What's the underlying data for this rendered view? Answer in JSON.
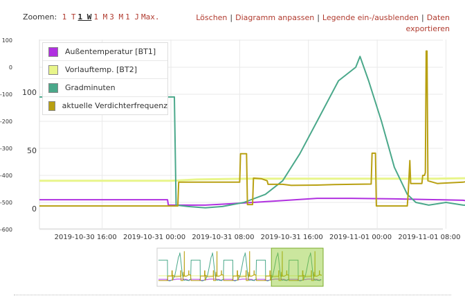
{
  "zoom": {
    "label": "Zoomen:",
    "options": [
      "1 T",
      "1 W",
      "1 M",
      "3 M",
      "1 J",
      "Max."
    ],
    "active": "1 W"
  },
  "actions": {
    "delete": "Löschen",
    "adjust": "Diagramm anpassen",
    "legend_toggle": "Legende ein-/ausblenden",
    "export": "Daten exportieren",
    "separator": "|"
  },
  "legend": [
    {
      "name": "Außentemperatur [BT1]",
      "color": "#b030e0"
    },
    {
      "name": "Vorlauftemp. [BT2]",
      "color": "#e8f58a"
    },
    {
      "name": "Gradminuten",
      "color": "#4aa88a"
    },
    {
      "name": "aktuelle Verdichterfrequenz",
      "color": "#b8a012"
    }
  ],
  "chart_data": {
    "type": "line",
    "x_tick_labels": [
      "2019-10-30 16:00",
      "2019-10-31 00:00",
      "2019-10-31 08:00",
      "2019-10-31 16:00",
      "2019-11-01 00:00",
      "2019-11-01 08:00"
    ],
    "left_axis_ticks": [
      "100",
      "0",
      "-100",
      "-200",
      "-300",
      "-400",
      "-500",
      "-600"
    ],
    "right_axis_ticks": [
      "100",
      "50",
      "0"
    ],
    "x_range_hours": [
      8.7,
      65.6
    ],
    "ylim_left": [
      -600,
      100
    ],
    "series": [
      {
        "name": "Außentemperatur [BT1]",
        "color": "#b030e0",
        "points": [
          [
            8.7,
            -490
          ],
          [
            23.6,
            -490
          ],
          [
            23.7,
            -510
          ],
          [
            28,
            -510
          ],
          [
            31,
            -505
          ],
          [
            36,
            -495
          ],
          [
            41,
            -485
          ],
          [
            45,
            -485
          ],
          [
            50,
            -487
          ],
          [
            55,
            -490
          ],
          [
            58,
            -492
          ],
          [
            61,
            -510
          ],
          [
            64.8,
            -500
          ]
        ]
      },
      {
        "name": "Vorlauftemp. [BT2]",
        "color": "#e8f58a",
        "points": [
          [
            8.7,
            -420
          ],
          [
            24,
            -420
          ],
          [
            27,
            -415
          ],
          [
            33,
            -412
          ],
          [
            41,
            -412
          ],
          [
            50,
            -412
          ],
          [
            55,
            -412
          ],
          [
            60,
            -410
          ],
          [
            64,
            -408
          ],
          [
            64.8,
            -410
          ]
        ]
      },
      {
        "name": "Gradminuten",
        "color": "#4aa88a",
        "points": [
          [
            8.7,
            -110
          ],
          [
            8.9,
            -110
          ],
          [
            24.4,
            -110
          ],
          [
            24.6,
            -510
          ],
          [
            26,
            -515
          ],
          [
            28,
            -520
          ],
          [
            30,
            -515
          ],
          [
            32.5,
            -500
          ],
          [
            35,
            -470
          ],
          [
            37,
            -420
          ],
          [
            39,
            -320
          ],
          [
            41,
            -200
          ],
          [
            43.5,
            -50
          ],
          [
            45.5,
            0
          ],
          [
            46,
            40
          ],
          [
            47,
            -50
          ],
          [
            48.5,
            -200
          ],
          [
            50,
            -370
          ],
          [
            51.5,
            -470
          ],
          [
            52.5,
            -500
          ],
          [
            54,
            -510
          ],
          [
            56,
            -500
          ],
          [
            58,
            -510
          ],
          [
            62,
            -515
          ],
          [
            62.5,
            -495
          ],
          [
            64.8,
            -495
          ]
        ]
      },
      {
        "name": "aktuelle Verdichterfrequenz",
        "color": "#b8a012",
        "points": [
          [
            8.7,
            -513
          ],
          [
            24.8,
            -513
          ],
          [
            24.9,
            -425
          ],
          [
            32.0,
            -425
          ],
          [
            32.1,
            -320
          ],
          [
            32.8,
            -320
          ],
          [
            32.9,
            -508
          ],
          [
            33.5,
            -508
          ],
          [
            33.6,
            -410
          ],
          [
            34.5,
            -412
          ],
          [
            35.2,
            -420
          ],
          [
            35.3,
            -433
          ],
          [
            37,
            -433
          ],
          [
            38,
            -437
          ],
          [
            41,
            -436
          ],
          [
            43,
            -434
          ],
          [
            47.3,
            -432
          ],
          [
            47.4,
            -318
          ],
          [
            47.8,
            -318
          ],
          [
            47.9,
            -513
          ],
          [
            51.5,
            -513
          ],
          [
            51.6,
            -470
          ],
          [
            51.8,
            -345
          ],
          [
            51.9,
            -430
          ],
          [
            53.2,
            -430
          ],
          [
            53.3,
            -400
          ],
          [
            53.5,
            -400
          ],
          [
            53.6,
            -390
          ],
          [
            53.7,
            60
          ],
          [
            53.8,
            60
          ],
          [
            53.9,
            -420
          ],
          [
            55,
            -430
          ],
          [
            58,
            -425
          ],
          [
            59.5,
            -415
          ],
          [
            60.5,
            -405
          ],
          [
            61.3,
            -400
          ],
          [
            61.4,
            -320
          ],
          [
            61.7,
            -320
          ],
          [
            61.8,
            -400
          ],
          [
            64.5,
            -400
          ],
          [
            64.8,
            -420
          ]
        ]
      }
    ]
  },
  "navigator": {
    "selection_from_fraction": 0.7,
    "selection_to_fraction": 1.0
  }
}
